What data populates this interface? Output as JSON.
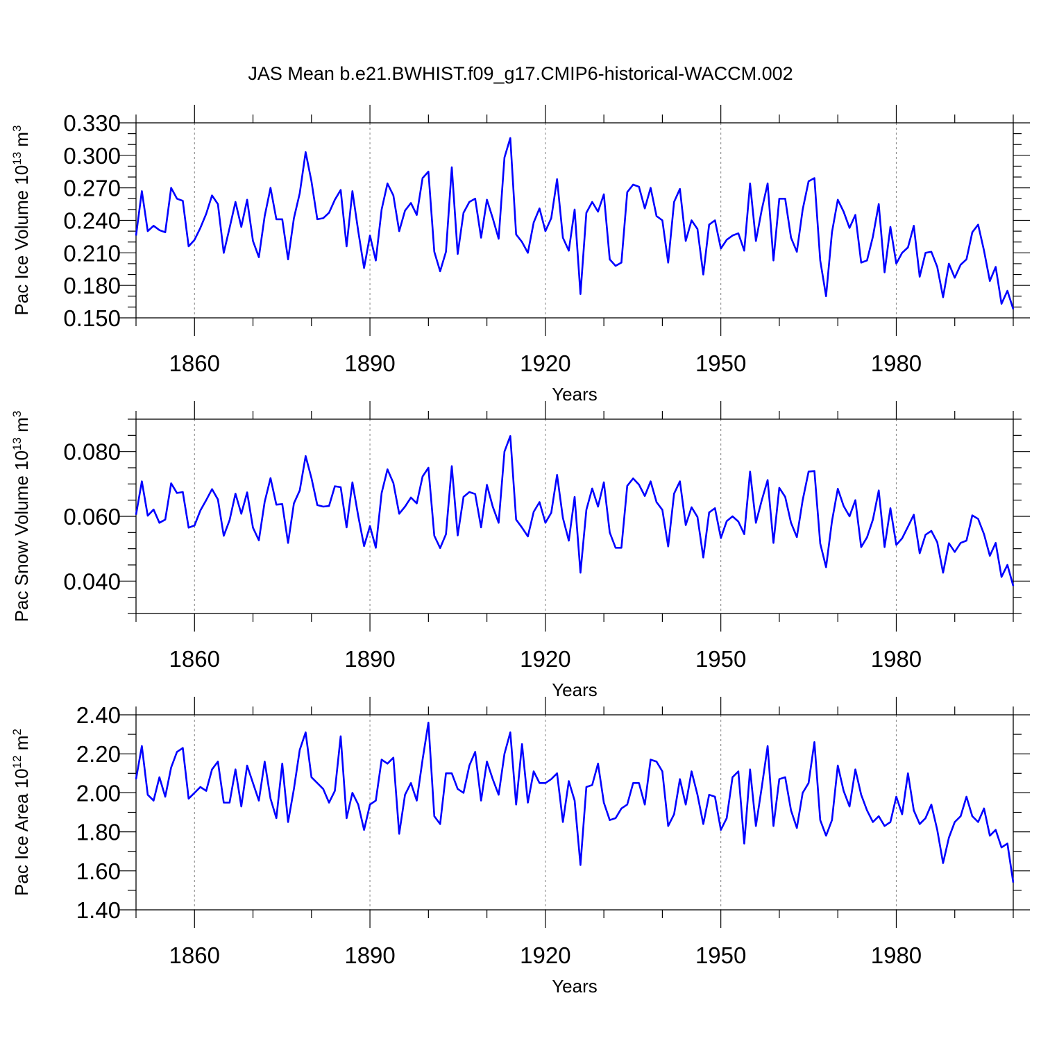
{
  "title": "JAS Mean b.e21.BWHIST.f09_g17.CMIP6-historical-WACCM.002",
  "colors": {
    "line": "#0000ff",
    "axis": "#000000",
    "grid": "#8a8a8a"
  },
  "chart_data": [
    {
      "type": "line",
      "name": "ice-volume",
      "ylabel_parts": [
        "Pac Ice Volume 10",
        "13",
        " m",
        "3"
      ],
      "xlabel": "Years",
      "xlim": [
        1850,
        2000
      ],
      "ylim": [
        0.15,
        0.33
      ],
      "grid": "vertical dashed at major x ticks",
      "x_ticks": [
        1860,
        1890,
        1920,
        1950,
        1980
      ],
      "x_tick_labels": [
        "1860",
        "1890",
        "1920",
        "1950",
        "1980"
      ],
      "y_ticks": [
        0.15,
        0.18,
        0.21,
        0.24,
        0.27,
        0.3,
        0.33
      ],
      "y_tick_labels": [
        "0.150",
        "0.180",
        "0.210",
        "0.240",
        "0.270",
        "0.300",
        "0.330"
      ],
      "x_start": 1850,
      "values": [
        0.226,
        0.267,
        0.23,
        0.235,
        0.231,
        0.229,
        0.27,
        0.26,
        0.258,
        0.216,
        0.222,
        0.233,
        0.246,
        0.263,
        0.255,
        0.21,
        0.233,
        0.257,
        0.234,
        0.259,
        0.221,
        0.206,
        0.244,
        0.27,
        0.241,
        0.241,
        0.204,
        0.242,
        0.265,
        0.303,
        0.276,
        0.241,
        0.242,
        0.247,
        0.259,
        0.268,
        0.216,
        0.267,
        0.23,
        0.196,
        0.226,
        0.203,
        0.25,
        0.274,
        0.263,
        0.23,
        0.249,
        0.256,
        0.245,
        0.279,
        0.285,
        0.211,
        0.193,
        0.211,
        0.289,
        0.209,
        0.247,
        0.257,
        0.26,
        0.224,
        0.259,
        0.242,
        0.223,
        0.298,
        0.316,
        0.227,
        0.22,
        0.21,
        0.238,
        0.251,
        0.23,
        0.242,
        0.278,
        0.224,
        0.212,
        0.25,
        0.172,
        0.247,
        0.257,
        0.248,
        0.264,
        0.204,
        0.198,
        0.201,
        0.266,
        0.273,
        0.271,
        0.251,
        0.27,
        0.244,
        0.24,
        0.201,
        0.257,
        0.269,
        0.221,
        0.24,
        0.232,
        0.19,
        0.236,
        0.24,
        0.214,
        0.222,
        0.226,
        0.228,
        0.212,
        0.274,
        0.221,
        0.25,
        0.274,
        0.203,
        0.26,
        0.26,
        0.224,
        0.211,
        0.25,
        0.276,
        0.279,
        0.203,
        0.17,
        0.229,
        0.259,
        0.248,
        0.233,
        0.245,
        0.201,
        0.203,
        0.225,
        0.255,
        0.192,
        0.234,
        0.2,
        0.21,
        0.215,
        0.235,
        0.188,
        0.21,
        0.211,
        0.197,
        0.169,
        0.2,
        0.187,
        0.199,
        0.204,
        0.229,
        0.236,
        0.212,
        0.184,
        0.197,
        0.163,
        0.175,
        0.158
      ]
    },
    {
      "type": "line",
      "name": "snow-volume",
      "ylabel_parts": [
        "Pac Snow Volume 10",
        "13",
        " m",
        "3"
      ],
      "xlabel": "Years",
      "xlim": [
        1850,
        2000
      ],
      "ylim": [
        0.03,
        0.09
      ],
      "grid": "vertical dashed at major x ticks",
      "x_ticks": [
        1860,
        1890,
        1920,
        1950,
        1980
      ],
      "x_tick_labels": [
        "1860",
        "1890",
        "1920",
        "1950",
        "1980"
      ],
      "y_ticks": [
        0.04,
        0.06,
        0.08
      ],
      "y_tick_labels": [
        "0.040",
        "0.060",
        "0.080"
      ],
      "x_start": 1850,
      "values": [
        0.0605,
        0.0708,
        0.0602,
        0.0621,
        0.058,
        0.059,
        0.0702,
        0.0672,
        0.0675,
        0.0565,
        0.0572,
        0.0618,
        0.065,
        0.0684,
        0.0652,
        0.054,
        0.0588,
        0.067,
        0.0608,
        0.0674,
        0.0565,
        0.0526,
        0.0645,
        0.0718,
        0.0636,
        0.0638,
        0.0518,
        0.064,
        0.068,
        0.0786,
        0.0718,
        0.0635,
        0.063,
        0.0632,
        0.0693,
        0.069,
        0.0566,
        0.0705,
        0.0601,
        0.0508,
        0.057,
        0.0503,
        0.0672,
        0.0745,
        0.0703,
        0.0608,
        0.063,
        0.0658,
        0.064,
        0.0723,
        0.075,
        0.054,
        0.0502,
        0.0545,
        0.0755,
        0.0541,
        0.066,
        0.0675,
        0.0669,
        0.0566,
        0.0697,
        0.063,
        0.058,
        0.08,
        0.0848,
        0.059,
        0.0565,
        0.0538,
        0.0614,
        0.0644,
        0.058,
        0.0611,
        0.0728,
        0.0595,
        0.0525,
        0.066,
        0.0426,
        0.062,
        0.0686,
        0.063,
        0.0705,
        0.055,
        0.0503,
        0.0503,
        0.0694,
        0.0717,
        0.0698,
        0.0663,
        0.0708,
        0.0644,
        0.062,
        0.0507,
        0.067,
        0.0708,
        0.0573,
        0.0628,
        0.0598,
        0.0473,
        0.0612,
        0.0625,
        0.0533,
        0.0585,
        0.06,
        0.0584,
        0.0545,
        0.0738,
        0.058,
        0.065,
        0.0712,
        0.0518,
        0.0688,
        0.066,
        0.058,
        0.0536,
        0.065,
        0.0738,
        0.074,
        0.0516,
        0.0443,
        0.0585,
        0.0685,
        0.0632,
        0.06,
        0.065,
        0.0505,
        0.0535,
        0.059,
        0.068,
        0.0505,
        0.0625,
        0.0512,
        0.0532,
        0.0568,
        0.0605,
        0.0486,
        0.0543,
        0.0555,
        0.052,
        0.0426,
        0.0517,
        0.049,
        0.0518,
        0.0525,
        0.0603,
        0.0592,
        0.0545,
        0.0478,
        0.0518,
        0.0413,
        0.045,
        0.0385
      ]
    },
    {
      "type": "line",
      "name": "ice-area",
      "ylabel_parts": [
        "Pac Ice Area 10",
        "12",
        " m",
        "2"
      ],
      "xlabel": "Years",
      "xlim": [
        1850,
        2000
      ],
      "ylim": [
        1.4,
        2.4
      ],
      "grid": "vertical dashed at major x ticks",
      "x_ticks": [
        1860,
        1890,
        1920,
        1950,
        1980
      ],
      "x_tick_labels": [
        "1860",
        "1890",
        "1920",
        "1950",
        "1980"
      ],
      "y_ticks": [
        1.4,
        1.6,
        1.8,
        2.0,
        2.2,
        2.4
      ],
      "y_tick_labels": [
        "1.40",
        "1.60",
        "1.80",
        "2.00",
        "2.20",
        "2.40"
      ],
      "x_start": 1850,
      "values": [
        2.07,
        2.24,
        1.99,
        1.96,
        2.08,
        1.98,
        2.13,
        2.21,
        2.23,
        1.97,
        2.0,
        2.03,
        2.01,
        2.12,
        2.16,
        1.95,
        1.95,
        2.12,
        1.93,
        2.14,
        2.05,
        1.96,
        2.16,
        1.97,
        1.87,
        2.15,
        1.85,
        2.02,
        2.22,
        2.31,
        2.08,
        2.05,
        2.02,
        1.95,
        2.01,
        2.29,
        1.87,
        2.0,
        1.94,
        1.81,
        1.94,
        1.96,
        2.17,
        2.15,
        2.18,
        1.79,
        1.99,
        2.05,
        1.96,
        2.17,
        2.36,
        1.88,
        1.84,
        2.1,
        2.1,
        2.02,
        2.0,
        2.14,
        2.21,
        1.96,
        2.16,
        2.07,
        1.99,
        2.2,
        2.31,
        1.94,
        2.25,
        1.95,
        2.11,
        2.05,
        2.05,
        2.07,
        2.1,
        1.85,
        2.06,
        1.96,
        1.63,
        2.03,
        2.04,
        2.15,
        1.95,
        1.86,
        1.87,
        1.92,
        1.94,
        2.05,
        2.05,
        1.94,
        2.17,
        2.16,
        2.11,
        1.83,
        1.89,
        2.07,
        1.94,
        2.11,
        1.99,
        1.84,
        1.99,
        1.98,
        1.81,
        1.87,
        2.08,
        2.11,
        1.74,
        2.12,
        1.83,
        2.03,
        2.24,
        1.83,
        2.07,
        2.08,
        1.91,
        1.82,
        2.0,
        2.05,
        2.26,
        1.86,
        1.78,
        1.86,
        2.14,
        2.01,
        1.93,
        2.12,
        1.99,
        1.91,
        1.85,
        1.88,
        1.83,
        1.85,
        1.98,
        1.89,
        2.1,
        1.91,
        1.84,
        1.87,
        1.94,
        1.81,
        1.64,
        1.77,
        1.85,
        1.88,
        1.98,
        1.88,
        1.85,
        1.92,
        1.78,
        1.81,
        1.72,
        1.74,
        1.54
      ]
    }
  ]
}
